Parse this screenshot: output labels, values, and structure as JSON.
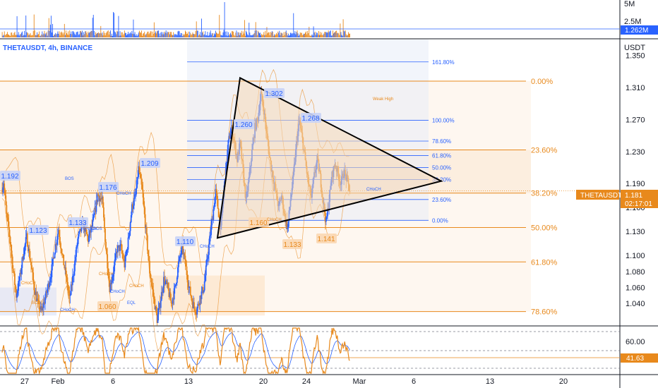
{
  "header": {
    "symbol_label": "THETAUSDT, 4h, BINANCE",
    "currency_label": "USDT"
  },
  "colors": {
    "bull": "#2962ff",
    "bear": "#e8891c",
    "fib_right": "#e8891c",
    "fib_left": "#2962ff",
    "triangle": "#000000",
    "triangle_fill": "#f6d8b8",
    "price_tag": "#e8891c",
    "rsi": "#e8891c",
    "rsi_ma": "#2962ff"
  },
  "volume_axis": {
    "ticks": [
      "5M",
      "2.5M"
    ],
    "current_label": "1.262M"
  },
  "price_axis": {
    "ticks": [
      "1.350",
      "1.310",
      "1.270",
      "1.230",
      "1.190",
      "1.160",
      "1.130",
      "1.100",
      "1.080",
      "1.060",
      "1.040"
    ],
    "symbol_tag": "THETAUSDT",
    "last_price": "1.181",
    "countdown": "02:17:01"
  },
  "rsi_axis": {
    "ticks": [
      "60.00"
    ],
    "current_label": "41.63"
  },
  "time_axis": {
    "ticks": [
      "27",
      "Feb",
      "6",
      "13",
      "20",
      "24",
      "Mar",
      "6",
      "13",
      "20"
    ]
  },
  "fib_right": [
    {
      "label": "0.00%",
      "price": 1.318
    },
    {
      "label": "23.60%",
      "price": 1.232
    },
    {
      "label": "38.20%",
      "price": 1.178
    },
    {
      "label": "50.00%",
      "price": 1.135
    },
    {
      "label": "61.80%",
      "price": 1.092
    },
    {
      "label": "78.60%",
      "price": 1.03
    }
  ],
  "fib_left": [
    {
      "label": "161.80%",
      "price": 1.342
    },
    {
      "label": "100.00%",
      "price": 1.269
    },
    {
      "label": "78.60%",
      "price": 1.243
    },
    {
      "label": "61.80%",
      "price": 1.225
    },
    {
      "label": "50.00%",
      "price": 1.21
    },
    {
      "label": "38.20%",
      "price": 1.195
    },
    {
      "label": "23.60%",
      "price": 1.17
    },
    {
      "label": "0.00%",
      "price": 1.144
    }
  ],
  "price_labels": [
    {
      "text": "1.192",
      "kind": "high"
    },
    {
      "text": "1.123",
      "kind": "high"
    },
    {
      "text": "1.133",
      "kind": "high"
    },
    {
      "text": "1.176",
      "kind": "high"
    },
    {
      "text": "1.209",
      "kind": "high"
    },
    {
      "text": "1.110",
      "kind": "high"
    },
    {
      "text": "1.260",
      "kind": "high"
    },
    {
      "text": "1.302",
      "kind": "high"
    },
    {
      "text": "1.268",
      "kind": "high"
    },
    {
      "text": "1.060",
      "kind": "low"
    },
    {
      "text": "1.160",
      "kind": "low"
    },
    {
      "text": "1.133",
      "kind": "low"
    },
    {
      "text": "1.141",
      "kind": "low"
    }
  ],
  "structure_labels": [
    "BOS",
    "CHoCH",
    "BOS",
    "CHoCH",
    "CHoCH",
    "BOS",
    "CHoCH",
    "CHoCH",
    "EQL",
    "CHoCH",
    "CHoCH",
    "CHoCH",
    "CHoCH",
    "CHoCH",
    "Weak High"
  ],
  "chart_data": {
    "type": "candlestick",
    "title": "THETAUSDT, 4h, BINANCE",
    "x_ticks": [
      "27",
      "Feb",
      "6",
      "13",
      "20",
      "24",
      "Mar",
      "6",
      "13",
      "20"
    ],
    "y_ticks": [
      1.35,
      1.31,
      1.27,
      1.23,
      1.19,
      1.16,
      1.13,
      1.1,
      1.08,
      1.06,
      1.04
    ],
    "ylim": [
      1.012,
      1.37
    ],
    "last_price": 1.181,
    "triangle": {
      "apex_high": 1.322,
      "apex_low": 1.122,
      "tip": 1.193
    },
    "path": [
      [
        0,
        1.182
      ],
      [
        3,
        1.192
      ],
      [
        7,
        1.15
      ],
      [
        11,
        1.125
      ],
      [
        16,
        1.08
      ],
      [
        20,
        1.05
      ],
      [
        25,
        1.073
      ],
      [
        29,
        1.1
      ],
      [
        34,
        1.123
      ],
      [
        40,
        1.088
      ],
      [
        44,
        1.06
      ],
      [
        49,
        1.04
      ],
      [
        54,
        1.03
      ],
      [
        60,
        1.05
      ],
      [
        67,
        1.078
      ],
      [
        72,
        1.108
      ],
      [
        77,
        1.133
      ],
      [
        82,
        1.1
      ],
      [
        87,
        1.075
      ],
      [
        92,
        1.045
      ],
      [
        97,
        1.078
      ],
      [
        103,
        1.12
      ],
      [
        110,
        1.14
      ],
      [
        117,
        1.12
      ],
      [
        124,
        1.143
      ],
      [
        130,
        1.176
      ],
      [
        136,
        1.168
      ],
      [
        141,
        1.11
      ],
      [
        146,
        1.06
      ],
      [
        151,
        1.08
      ],
      [
        156,
        1.108
      ],
      [
        161,
        1.11
      ],
      [
        166,
        1.088
      ],
      [
        171,
        1.118
      ],
      [
        176,
        1.16
      ],
      [
        181,
        1.175
      ],
      [
        185,
        1.209
      ],
      [
        190,
        1.18
      ],
      [
        195,
        1.13
      ],
      [
        200,
        1.08
      ],
      [
        205,
        1.05
      ],
      [
        210,
        1.02
      ],
      [
        214,
        1.04
      ],
      [
        219,
        1.07
      ],
      [
        224,
        1.06
      ],
      [
        229,
        1.04
      ],
      [
        234,
        1.058
      ],
      [
        239,
        1.09
      ],
      [
        244,
        1.11
      ],
      [
        248,
        1.09
      ],
      [
        253,
        1.06
      ],
      [
        258,
        1.04
      ],
      [
        263,
        1.03
      ],
      [
        268,
        1.048
      ],
      [
        273,
        1.06
      ],
      [
        277,
        1.09
      ],
      [
        281,
        1.12
      ],
      [
        285,
        1.15
      ],
      [
        289,
        1.18
      ],
      [
        292,
        1.16
      ],
      [
        296,
        1.132
      ],
      [
        299,
        1.17
      ],
      [
        302,
        1.2
      ],
      [
        306,
        1.24
      ],
      [
        310,
        1.26
      ],
      [
        314,
        1.243
      ],
      [
        318,
        1.22
      ],
      [
        322,
        1.24
      ],
      [
        326,
        1.205
      ],
      [
        330,
        1.168
      ],
      [
        334,
        1.196
      ],
      [
        338,
        1.23
      ],
      [
        342,
        1.26
      ],
      [
        346,
        1.272
      ],
      [
        350,
        1.302
      ],
      [
        354,
        1.282
      ],
      [
        358,
        1.25
      ],
      [
        362,
        1.222
      ],
      [
        366,
        1.2
      ],
      [
        370,
        1.18
      ],
      [
        374,
        1.16
      ],
      [
        378,
        1.175
      ],
      [
        382,
        1.15
      ],
      [
        386,
        1.133
      ],
      [
        390,
        1.17
      ],
      [
        394,
        1.2
      ],
      [
        398,
        1.24
      ],
      [
        402,
        1.268
      ],
      [
        406,
        1.245
      ],
      [
        410,
        1.218
      ],
      [
        414,
        1.19
      ],
      [
        418,
        1.172
      ],
      [
        422,
        1.2
      ],
      [
        426,
        1.22
      ],
      [
        430,
        1.198
      ],
      [
        434,
        1.168
      ],
      [
        438,
        1.141
      ],
      [
        442,
        1.17
      ],
      [
        446,
        1.2
      ],
      [
        450,
        1.215
      ],
      [
        454,
        1.202
      ],
      [
        458,
        1.19
      ],
      [
        462,
        1.205
      ],
      [
        466,
        1.195
      ],
      [
        470,
        1.181
      ]
    ]
  }
}
